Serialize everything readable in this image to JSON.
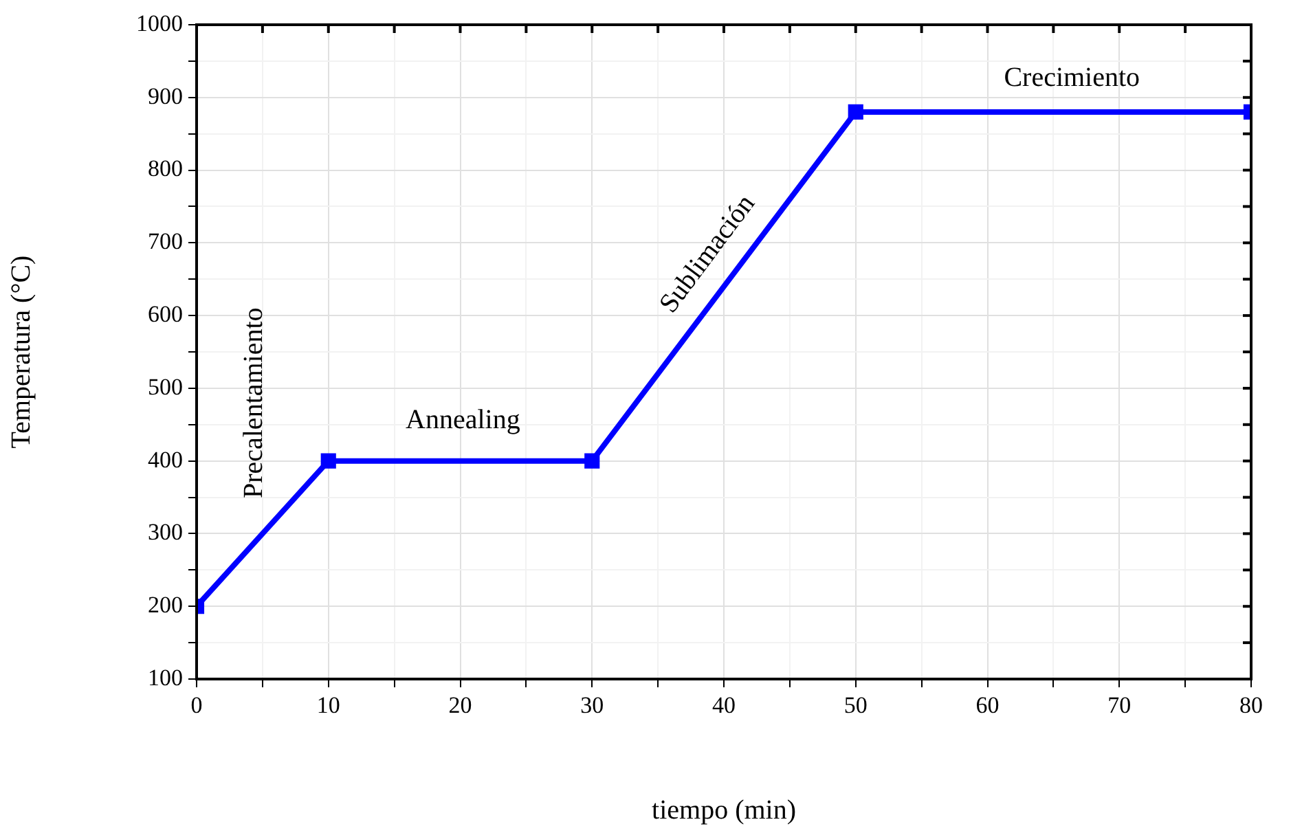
{
  "chart_data": {
    "type": "line",
    "xlabel": "tiempo (min)",
    "ylabel": "Temperatura (°C)",
    "x": [
      0,
      10,
      30,
      50,
      80
    ],
    "series": [
      {
        "color": "#0000ff",
        "values": [
          200,
          400,
          400,
          880,
          880
        ]
      }
    ],
    "xlim": [
      0,
      80
    ],
    "ylim": [
      100,
      1000
    ],
    "xticks": [
      0,
      {
        "value": 5,
        "label": null
      },
      10,
      {
        "value": 15,
        "label": null
      },
      20,
      {
        "value": 25,
        "label": null
      },
      30,
      {
        "value": 35,
        "label": null
      },
      40,
      {
        "value": 45,
        "label": null
      },
      50,
      {
        "value": 55,
        "label": null
      },
      60,
      {
        "value": 65,
        "label": null
      },
      70,
      {
        "value": 75,
        "label": null
      },
      80
    ],
    "yticks": [
      100,
      {
        "value": 150,
        "label": null
      },
      200,
      {
        "value": 250,
        "label": null
      },
      300,
      {
        "value": 350,
        "label": null
      },
      400,
      {
        "value": 450,
        "label": null
      },
      500,
      {
        "value": 550,
        "label": null
      },
      600,
      {
        "value": 650,
        "label": null
      },
      700,
      {
        "value": 750,
        "label": null
      },
      800,
      {
        "value": 850,
        "label": null
      },
      900,
      {
        "value": 950,
        "label": null
      },
      1000
    ],
    "grid": true,
    "legend": false,
    "marker": "square",
    "line_style": "solid",
    "annotations": [
      "Precalentamiento",
      "Annealing",
      "Sublimación",
      "Crecimiento"
    ]
  }
}
